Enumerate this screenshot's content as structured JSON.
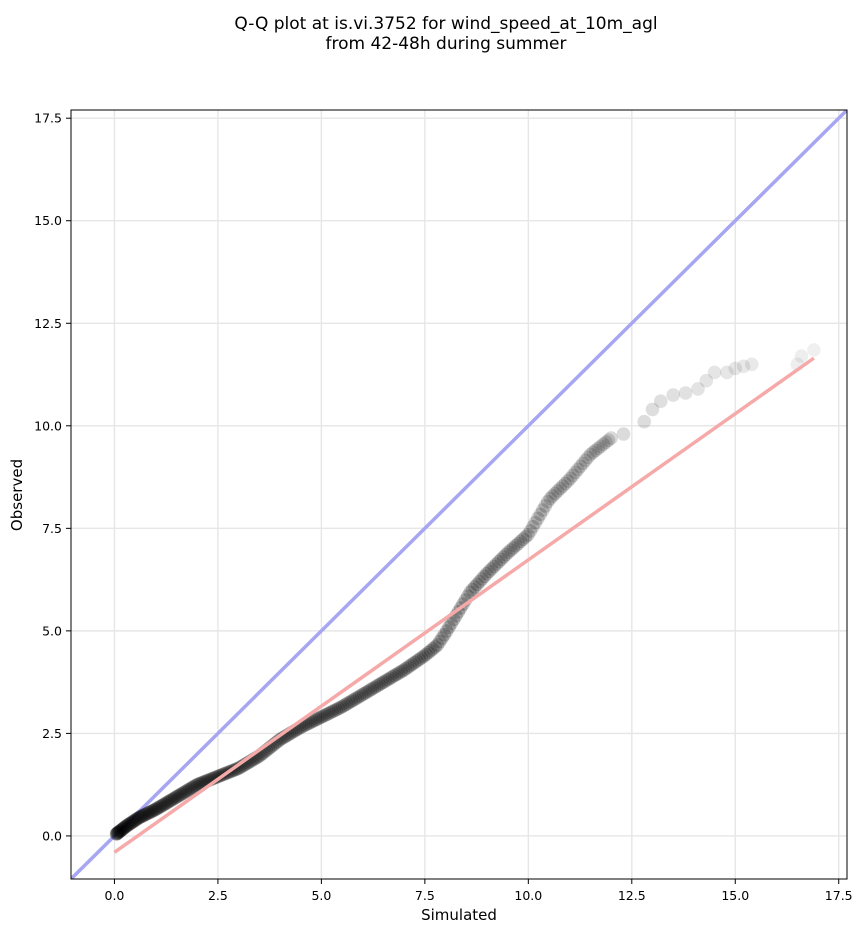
{
  "chart_data": {
    "type": "scatter",
    "title_lines": [
      "Q-Q plot at is.vi.3752 for wind_speed_at_10m_agl",
      "from 42-48h during summer"
    ],
    "xlabel": "Simulated",
    "ylabel": "Observed",
    "xlim": [
      -1.05,
      17.7
    ],
    "ylim": [
      -1.05,
      17.7
    ],
    "xticks": [
      0.0,
      2.5,
      5.0,
      7.5,
      10.0,
      12.5,
      15.0,
      17.5
    ],
    "yticks": [
      0.0,
      2.5,
      5.0,
      7.5,
      10.0,
      12.5,
      15.0,
      17.5
    ],
    "grid": true,
    "colors": {
      "points": "#000000",
      "identity_line": "#a6a6f2",
      "fit_line": "#f5a9a9",
      "grid": "#e6e6e6"
    },
    "identity_line": {
      "label": "1:1 reference",
      "slope": 1,
      "intercept": 0
    },
    "fit_line": {
      "x": [
        0.0,
        16.9
      ],
      "y": [
        -0.4,
        11.65
      ]
    },
    "quantile_curve": {
      "x": [
        0.05,
        0.3,
        0.6,
        1.0,
        1.5,
        2.0,
        2.5,
        3.0,
        3.5,
        4.0,
        4.5,
        5.0,
        5.5,
        6.0,
        6.5,
        7.0,
        7.5,
        7.8,
        8.0,
        8.3,
        8.6,
        9.0,
        9.5,
        10.0,
        10.5,
        11.0,
        11.5,
        12.0
      ],
      "y": [
        0.05,
        0.25,
        0.45,
        0.65,
        0.95,
        1.25,
        1.45,
        1.65,
        1.95,
        2.35,
        2.65,
        2.9,
        3.15,
        3.45,
        3.75,
        4.05,
        4.4,
        4.65,
        4.95,
        5.45,
        5.95,
        6.4,
        6.9,
        7.35,
        8.2,
        8.7,
        9.3,
        9.7
      ]
    },
    "upper_tail_points": [
      {
        "x": 12.3,
        "y": 9.8
      },
      {
        "x": 12.8,
        "y": 10.1
      },
      {
        "x": 13.0,
        "y": 10.4
      },
      {
        "x": 13.2,
        "y": 10.6
      },
      {
        "x": 13.5,
        "y": 10.75
      },
      {
        "x": 13.8,
        "y": 10.8
      },
      {
        "x": 14.1,
        "y": 10.9
      },
      {
        "x": 14.3,
        "y": 11.1
      },
      {
        "x": 14.5,
        "y": 11.3
      },
      {
        "x": 14.8,
        "y": 11.3
      },
      {
        "x": 15.0,
        "y": 11.4
      },
      {
        "x": 15.2,
        "y": 11.45
      },
      {
        "x": 15.4,
        "y": 11.5
      },
      {
        "x": 16.5,
        "y": 11.5
      },
      {
        "x": 16.6,
        "y": 11.7
      },
      {
        "x": 16.9,
        "y": 11.85
      }
    ]
  }
}
